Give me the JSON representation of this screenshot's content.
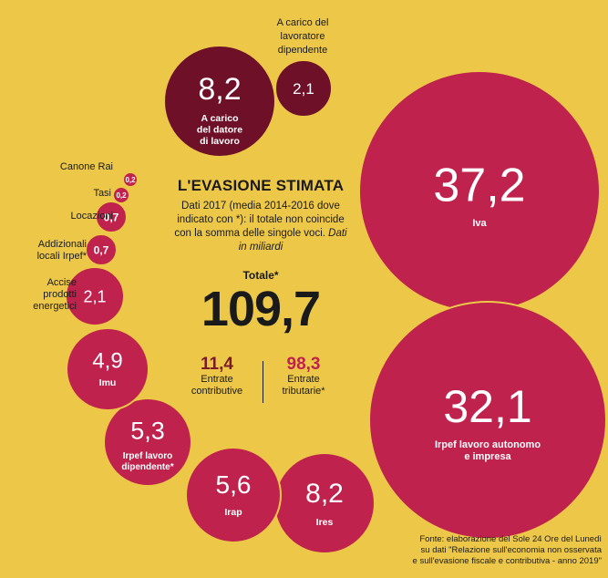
{
  "chart_data": {
    "type": "bubble",
    "title": "L'EVASIONE STIMATA",
    "subtitle_plain": "Dati 2017 (media 2014-2016 dove indicato con *): il totale non coincide con la somma delle singole voci.",
    "subtitle_italic": "Dati in miliardi",
    "total_label": "Totale*",
    "total_value": "109,7",
    "split": [
      {
        "value": "11,4",
        "label_line1": "Entrate",
        "label_line2": "contributive"
      },
      {
        "value": "98,3",
        "label_line1": "Entrate",
        "label_line2": "tributarie*"
      }
    ],
    "bubbles": [
      {
        "label": "A carico del datore di lavoro",
        "value": 8.2,
        "display": "8,2",
        "color": "#6e1128"
      },
      {
        "label": "A carico del lavoratore dipendente",
        "value": 2.1,
        "display": "2,1",
        "color": "#6e1128"
      },
      {
        "label": "Iva",
        "value": 37.2,
        "display": "37,2",
        "color": "#c0224e"
      },
      {
        "label": "Irpef lavoro autonomo e impresa",
        "value": 32.1,
        "display": "32,1",
        "color": "#c0224e"
      },
      {
        "label": "Ires",
        "value": 8.2,
        "display": "8,2",
        "color": "#c0224e"
      },
      {
        "label": "Irap",
        "value": 5.6,
        "display": "5,6",
        "color": "#c0224e"
      },
      {
        "label": "Irpef lavoro dipendente*",
        "value": 5.3,
        "display": "5,3",
        "color": "#c0224e"
      },
      {
        "label": "Imu",
        "value": 4.9,
        "display": "4,9",
        "color": "#c0224e"
      },
      {
        "label": "Accise prodotti energetici",
        "value": 2.1,
        "display": "2,1",
        "color": "#c0224e"
      },
      {
        "label": "Addizionali locali Irpef*",
        "value": 0.7,
        "display": "0,7",
        "color": "#c0224e"
      },
      {
        "label": "Locazioni",
        "value": 0.7,
        "display": "0,7",
        "color": "#c0224e"
      },
      {
        "label": "Tasi",
        "value": 0.2,
        "display": "0,2",
        "color": "#c0224e"
      },
      {
        "label": "Canone Rai",
        "value": 0.2,
        "display": "0,2",
        "color": "#c0224e"
      }
    ],
    "source_line1": "Fonte: elaborazione del Sole 24 Ore del Lunedì",
    "source_line2": "su dati \"Relazione sull'economia non osservata",
    "source_line3": "e sull'evasione fiscale e contributiva - anno 2019\""
  }
}
